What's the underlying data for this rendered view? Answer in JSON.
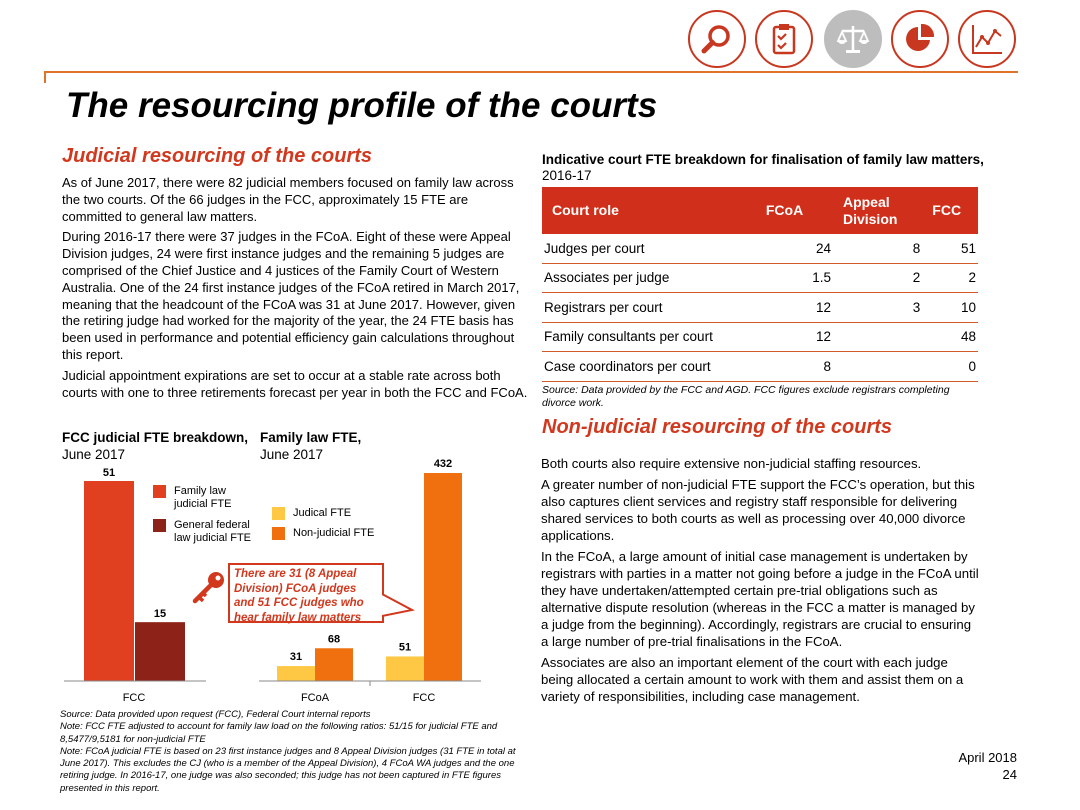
{
  "header": {
    "icons": [
      "search-icon",
      "clipboard-checklist-icon",
      "scales-of-justice-icon",
      "pie-chart-icon",
      "line-chart-icon"
    ],
    "accent_color": "#c8371f",
    "muted_icon_color": "#bdbdbd"
  },
  "title": "The resourcing profile of the courts",
  "judicial": {
    "heading": "Judicial resourcing of the courts",
    "paragraphs": [
      "As of June 2017, there were 82 judicial members focused on family law across the two courts. Of the 66 judges in the FCC, approximately 15 FTE are committed to general law matters.",
      "During 2016-17 there were 37 judges in the FCoA. Eight of these were Appeal Division judges, 24 were first instance judges and the remaining 5 judges are comprised of the Chief Justice and 4 justices of the Family Court of Western Australia. One of the 24 first instance judges of the FCoA retired in March 2017, meaning that the headcount of the FCoA was 31 at June 2017. However, given the retiring judge had worked for the majority of the year, the 24 FTE basis has been used in performance and potential efficiency gain calculations throughout this report.",
      "Judicial appointment expirations are set to occur at a stable rate across both courts with one to three retirements forecast per year in both the FCC and FCoA."
    ]
  },
  "table": {
    "caption_bold": "Indicative court FTE breakdown for finalisation of family law matters,",
    "caption_light": " 2016-17",
    "headers": [
      "Court role",
      "FCoA",
      "Appeal Division",
      "FCC"
    ],
    "rows": [
      [
        "Judges per court",
        "24",
        "8",
        "51"
      ],
      [
        "Associates per judge",
        "1.5",
        "2",
        "2"
      ],
      [
        "Registrars per court",
        "12",
        "3",
        "10"
      ],
      [
        "Family consultants per court",
        "12",
        "",
        "48"
      ],
      [
        "Case coordinators per court",
        "8",
        "",
        "0"
      ]
    ],
    "source": "Source: Data provided by the FCC and AGD. FCC figures exclude registrars completing divorce work."
  },
  "nonjudicial": {
    "heading": "Non-judicial resourcing of the courts",
    "paragraphs": [
      "Both courts also require extensive non-judicial staffing resources.",
      "A greater number of non-judicial FTE support the FCC’s operation, but this also captures client services and registry staff responsible for delivering shared services to both courts as well as processing over 40,000 divorce applications.",
      "In the FCoA, a large amount of initial case management is undertaken by registrars with parties in a matter not going before a judge in the FCoA until they have undertaken/attempted certain pre-trial obligations such as alternative dispute resolution (whereas in the FCC a matter is managed by a judge from the beginning). Accordingly, registrars are crucial to ensuring a large number of pre-trial finalisations in the FCoA.",
      "Associates are also an important element of the court with each judge being allocated a certain amount to work with them and assist them on a variety of responsibilities, including case management."
    ]
  },
  "chart_data": [
    {
      "type": "bar",
      "title_bold": "FCC judicial FTE breakdown,",
      "title_light": " June 2017",
      "categories": [
        "FCC"
      ],
      "series": [
        {
          "name": "Family law judicial FTE",
          "values": [
            51
          ],
          "color": "#e0401f"
        },
        {
          "name": "General federal law judicial FTE",
          "values": [
            15
          ],
          "color": "#8c2218"
        }
      ],
      "ylim": [
        0,
        51
      ]
    },
    {
      "type": "bar",
      "title_bold": "Family law FTE,",
      "title_light": " June 2017",
      "categories": [
        "FCoA",
        "FCC"
      ],
      "series": [
        {
          "name": "Judical FTE",
          "values": [
            31,
            51
          ],
          "color": "#ffc844"
        },
        {
          "name": "Non-judicial FTE",
          "values": [
            68,
            432
          ],
          "color": "#f07010"
        }
      ],
      "ylim": [
        0,
        432
      ]
    }
  ],
  "callout": {
    "icon": "key-icon",
    "text": "There are 31 (8 Appeal Division) FCoA judges and 51 FCC judges who hear family law matters"
  },
  "chart_notes": [
    "Source: Data provided upon request (FCC), Federal Court internal reports",
    "Note: FCC FTE adjusted to account for family law load on the following ratios: 51/15 for judicial FTE and 8,5477/9,5181 for non-judicial FTE",
    "Note: FCoA judicial FTE is based on 23 first instance judges and 8 Appeal Division judges (31 FTE in total at June 2017). This excludes the CJ (who is a member of the Appeal Division), 4 FCoA WA judges and the one retiring judge. In 2016-17, one judge was also seconded; this judge has not been captured in FTE figures presented in this report."
  ],
  "footer": {
    "date": "April 2018",
    "page": "24"
  }
}
